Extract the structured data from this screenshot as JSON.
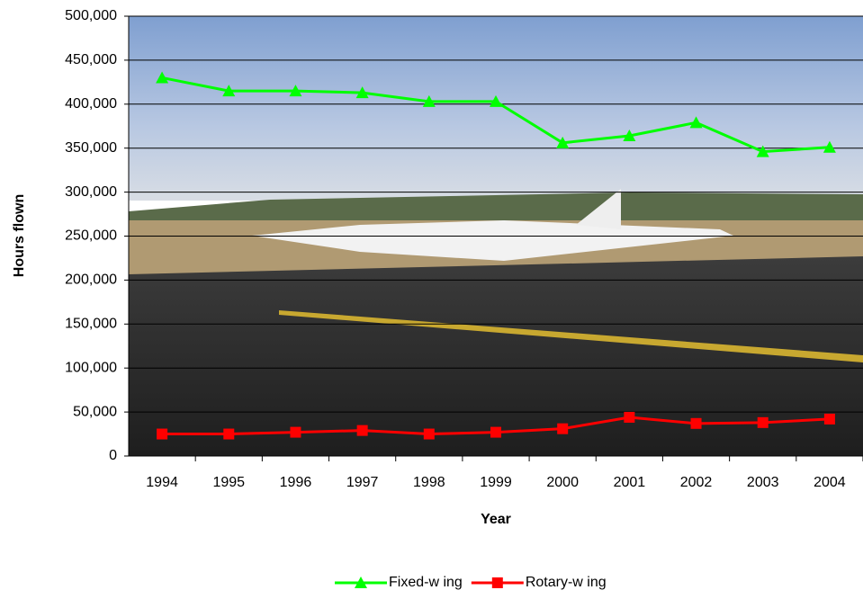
{
  "chart_data": {
    "type": "line",
    "x_label": "Year",
    "y_label": "Hours flown",
    "categories": [
      "1994",
      "1995",
      "1996",
      "1997",
      "1998",
      "1999",
      "2000",
      "2001",
      "2002",
      "2003",
      "2004"
    ],
    "series": [
      {
        "name": "Fixed-w ing",
        "color": "#00ff00",
        "marker": "triangle",
        "values": [
          430000,
          415000,
          415000,
          413000,
          403000,
          403000,
          356000,
          364000,
          379000,
          346000,
          351000
        ]
      },
      {
        "name": "Rotary-w ing",
        "color": "#ff0000",
        "marker": "square",
        "values": [
          25000,
          25000,
          27000,
          29000,
          25000,
          27000,
          31000,
          44000,
          37000,
          38000,
          42000
        ]
      }
    ],
    "ylim": [
      0,
      500000
    ],
    "yticks": [
      0,
      {
        "value": 50000,
        "label": "50,000"
      },
      {
        "value": 100000,
        "label": "100,000"
      },
      {
        "value": 150000,
        "label": "150,000"
      },
      {
        "value": 200000,
        "label": "200,000"
      },
      {
        "value": 250000,
        "label": "250,000"
      },
      {
        "value": 300000,
        "label": "300,000"
      },
      {
        "value": 350000,
        "label": "350,000"
      },
      {
        "value": 400000,
        "label": "400,000"
      },
      {
        "value": 450000,
        "label": "450,000"
      },
      {
        "value": 500000,
        "label": "500,000"
      }
    ],
    "grid": true,
    "legend": "bottom"
  }
}
